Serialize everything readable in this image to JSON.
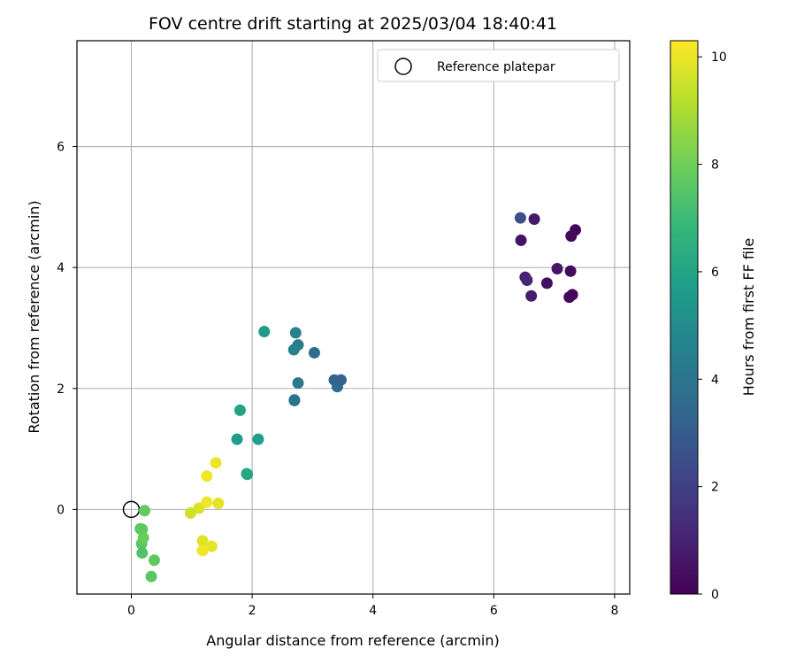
{
  "chart_data": {
    "type": "scatter",
    "title": "FOV centre drift starting at 2025/03/04 18:40:41",
    "xlabel": "Angular distance from reference (arcmin)",
    "ylabel": "Rotation from reference (arcmin)",
    "xlim": [
      -0.9,
      8.25
    ],
    "ylim": [
      -1.4,
      7.75
    ],
    "xticks": [
      0,
      2,
      4,
      6,
      8
    ],
    "yticks": [
      0,
      2,
      4,
      6
    ],
    "grid": true,
    "legend": {
      "placement": "top-right",
      "entries": [
        "Reference platepar"
      ]
    },
    "reference_point": {
      "label": "Reference platepar",
      "x": 0,
      "y": 0
    },
    "colorbar": {
      "label": "Hours from first FF file",
      "range": [
        0,
        10.3
      ],
      "ticks": [
        0,
        2,
        4,
        6,
        8,
        10
      ],
      "colormap": "viridis"
    },
    "series": [
      {
        "x": [
          7.35,
          7.28,
          6.45,
          6.67,
          6.52,
          6.55,
          7.05,
          6.88,
          7.27,
          6.62,
          7.25,
          7.3,
          6.44,
          3.36,
          3.41,
          3.47,
          2.76,
          2.7,
          2.7,
          3.03,
          2.76,
          2.72,
          2.69,
          2.2,
          2.1,
          1.8,
          1.75,
          1.92,
          1.91,
          0.22,
          0.15,
          0.18,
          0.17,
          0.18,
          0.2,
          0.38,
          0.33,
          1.4,
          1.25,
          1.18,
          1.33,
          1.18,
          1.12,
          0.98,
          1.25,
          1.44
        ],
        "y": [
          4.62,
          4.52,
          4.45,
          4.8,
          3.84,
          3.79,
          3.98,
          3.74,
          3.94,
          3.53,
          3.51,
          3.55,
          4.82,
          2.14,
          2.03,
          2.14,
          2.09,
          1.81,
          1.8,
          2.59,
          2.72,
          2.92,
          2.64,
          2.94,
          1.16,
          1.64,
          1.16,
          0.58,
          0.59,
          -0.02,
          -0.32,
          -0.33,
          -0.57,
          -0.72,
          -0.47,
          -0.84,
          -1.11,
          0.77,
          0.55,
          -0.52,
          -0.61,
          -0.68,
          0.02,
          -0.06,
          0.12,
          0.1
        ],
        "hours": [
          0.1,
          0.2,
          0.5,
          0.7,
          0.9,
          1.1,
          0.6,
          0.4,
          0.3,
          0.8,
          0.2,
          0.15,
          2.5,
          3.3,
          3.5,
          3.2,
          4.2,
          4.0,
          3.9,
          3.6,
          4.3,
          4.5,
          4.6,
          5.6,
          5.8,
          5.9,
          5.7,
          6.0,
          6.1,
          7.8,
          7.5,
          7.7,
          7.6,
          7.4,
          7.9,
          7.7,
          7.6,
          10.0,
          10.1,
          9.8,
          9.9,
          10.05,
          9.7,
          9.6,
          10.1,
          9.9
        ]
      }
    ]
  }
}
